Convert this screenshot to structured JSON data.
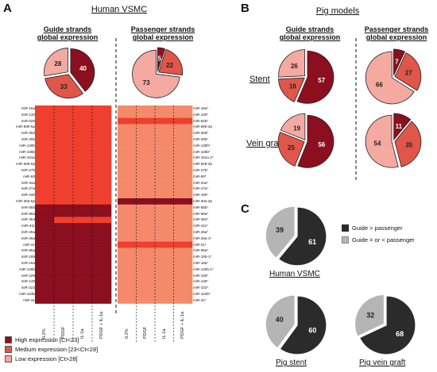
{
  "panels": {
    "a": "A",
    "b": "B",
    "c": "C"
  },
  "panel_a": {
    "title": "Human VSMC",
    "guide_header_1": "Guide strands",
    "guide_header_2": "global expression",
    "pass_header_1": "Passenger strands",
    "pass_header_2": "global expression",
    "left_rows": [
      "miR-16a",
      "miR-130",
      "miR-625",
      "miR-590-5p",
      "miR-30d",
      "miR-26b",
      "miR-130b",
      "miR-106b",
      "miR-181a",
      "miR-628-5p",
      "miR-27b",
      "miR-93",
      "miR-34a",
      "miR-27a",
      "miR-16b",
      "miR-30a-5p",
      "miR-55b",
      "miR-99a",
      "miR-454",
      "miR-411",
      "miR-25a",
      "miR-26a",
      "miR-21",
      "miR-95a",
      "miR-15b",
      "miR-16a",
      "miR-125b",
      "miR-100",
      "miR-145",
      "miR-222",
      "miR-153b",
      "miR-31"
    ],
    "right_rows": [
      "miR-16a*",
      "miR-130*",
      "miR-625*",
      "miR-590-3p",
      "miR-30d*",
      "miR-26b*",
      "miR-130b*",
      "miR-106b*",
      "miR-181a 2*",
      "miR-628-3p",
      "miR-27b*",
      "miR-93*",
      "miR-34a*",
      "miR-27a*",
      "miR-16b*",
      "miR-30a-3p",
      "miR-55b*",
      "miR-99a*",
      "miR-454*",
      "miR-411*",
      "miR-25a*",
      "miR-26a-1*",
      "miR-21*",
      "miR-95a*",
      "miR-15b-1*",
      "miR-16a*",
      "miR-125b-1*",
      "miR-100*",
      "miR-145*",
      "miR-222*",
      "miR-153b*",
      "miR-31*"
    ],
    "columns": [
      "0.2%",
      "PDGF",
      "IL-1a",
      "PDGF + IL-1a"
    ]
  },
  "panel_b": {
    "title": "Pig models",
    "guide_header_1": "Guide strands",
    "guide_header_2": "global expression",
    "pass_header_1": "Passenger strands",
    "pass_header_2": "global expression",
    "row_stent": "Stent",
    "row_vein": "Vein graft"
  },
  "panel_c": {
    "legend_guide_gt": "Guide > passenger",
    "legend_guide_le": "Guide = or < passenger",
    "label_human": "Human VSMC",
    "label_stent": "Pig stent",
    "label_vein": "Pig vein graft"
  },
  "legend_a": {
    "high": "High expression [Ct<23]",
    "medium": "Medium expression [23<Ct<28]",
    "low": "Low expression [Ct>28]"
  },
  "colors": {
    "high": "#8b0f1f",
    "medium": "#e0564a",
    "low": "#f4a9a1",
    "c_dark": "#2b2b2b",
    "c_light": "#b5b5b5"
  },
  "chart_data": [
    {
      "type": "pie",
      "id": "a-guide",
      "categories": [
        "High",
        "Medium",
        "Low"
      ],
      "values": [
        40,
        33,
        28
      ]
    },
    {
      "type": "pie",
      "id": "a-passenger",
      "categories": [
        "High",
        "Medium",
        "Low"
      ],
      "values": [
        5,
        22,
        73
      ]
    },
    {
      "type": "pie",
      "id": "b-stent-guide",
      "categories": [
        "High",
        "Medium",
        "Low"
      ],
      "values": [
        57,
        18,
        26
      ]
    },
    {
      "type": "pie",
      "id": "b-stent-passenger",
      "categories": [
        "High",
        "Medium",
        "Low"
      ],
      "values": [
        7,
        27,
        66
      ]
    },
    {
      "type": "pie",
      "id": "b-vein-guide",
      "categories": [
        "High",
        "Medium",
        "Low"
      ],
      "values": [
        56,
        25,
        19
      ]
    },
    {
      "type": "pie",
      "id": "b-vein-passenger",
      "categories": [
        "High",
        "Medium",
        "Low"
      ],
      "values": [
        11,
        35,
        54
      ]
    },
    {
      "type": "pie",
      "id": "c-human",
      "categories": [
        "Guide > passenger",
        "Guide = or < passenger"
      ],
      "values": [
        61,
        39
      ]
    },
    {
      "type": "pie",
      "id": "c-stent",
      "categories": [
        "Guide > passenger",
        "Guide = or < passenger"
      ],
      "values": [
        60,
        40
      ]
    },
    {
      "type": "pie",
      "id": "c-vein",
      "categories": [
        "Guide > passenger",
        "Guide = or < passenger"
      ],
      "values": [
        68,
        32
      ]
    },
    {
      "type": "heatmap",
      "id": "a-heatmap-guide",
      "columns": [
        "0.2%",
        "PDGF",
        "IL-1a",
        "PDGF + IL-1a"
      ],
      "levels": [
        [
          "M",
          "M",
          "M",
          "M"
        ],
        [
          "M",
          "M",
          "M",
          "M"
        ],
        [
          "M",
          "M",
          "M",
          "M"
        ],
        [
          "M",
          "M",
          "M",
          "M"
        ],
        [
          "M",
          "M",
          "M",
          "M"
        ],
        [
          "M",
          "M",
          "M",
          "M"
        ],
        [
          "M",
          "M",
          "M",
          "M"
        ],
        [
          "M",
          "M",
          "M",
          "M"
        ],
        [
          "M",
          "M",
          "M",
          "M"
        ],
        [
          "M",
          "M",
          "M",
          "M"
        ],
        [
          "M",
          "M",
          "M",
          "M"
        ],
        [
          "M",
          "M",
          "M",
          "M"
        ],
        [
          "M",
          "M",
          "M",
          "M"
        ],
        [
          "M",
          "M",
          "M",
          "M"
        ],
        [
          "M",
          "M",
          "M",
          "M"
        ],
        [
          "M",
          "M",
          "M",
          "M"
        ],
        [
          "H",
          "H",
          "H",
          "H"
        ],
        [
          "H",
          "H",
          "H",
          "H"
        ],
        [
          "H",
          "M",
          "M",
          "M"
        ],
        [
          "H",
          "H",
          "H",
          "H"
        ],
        [
          "H",
          "H",
          "H",
          "H"
        ],
        [
          "H",
          "H",
          "H",
          "H"
        ],
        [
          "H",
          "H",
          "H",
          "H"
        ],
        [
          "H",
          "H",
          "H",
          "H"
        ],
        [
          "H",
          "H",
          "H",
          "H"
        ],
        [
          "H",
          "H",
          "H",
          "H"
        ],
        [
          "H",
          "H",
          "H",
          "H"
        ],
        [
          "H",
          "H",
          "H",
          "H"
        ],
        [
          "H",
          "H",
          "H",
          "H"
        ],
        [
          "H",
          "H",
          "H",
          "H"
        ],
        [
          "H",
          "H",
          "H",
          "H"
        ],
        [
          "H",
          "H",
          "H",
          "H"
        ]
      ]
    },
    {
      "type": "heatmap",
      "id": "a-heatmap-passenger",
      "columns": [
        "0.2%",
        "PDGF",
        "IL-1a",
        "PDGF + IL-1a"
      ],
      "levels": [
        [
          "L",
          "L",
          "L",
          "L"
        ],
        [
          "L",
          "L",
          "L",
          "L"
        ],
        [
          "M",
          "M",
          "M",
          "M"
        ],
        [
          "L",
          "L",
          "L",
          "L"
        ],
        [
          "L",
          "L",
          "L",
          "L"
        ],
        [
          "L",
          "L",
          "L",
          "L"
        ],
        [
          "L",
          "L",
          "L",
          "L"
        ],
        [
          "L",
          "L",
          "L",
          "L"
        ],
        [
          "L",
          "L",
          "L",
          "L"
        ],
        [
          "L",
          "L",
          "L",
          "L"
        ],
        [
          "L",
          "L",
          "L",
          "L"
        ],
        [
          "L",
          "L",
          "L",
          "L"
        ],
        [
          "L",
          "L",
          "L",
          "L"
        ],
        [
          "L",
          "L",
          "L",
          "L"
        ],
        [
          "L",
          "L",
          "L",
          "L"
        ],
        [
          "H",
          "H",
          "H",
          "H"
        ],
        [
          "L",
          "L",
          "L",
          "L"
        ],
        [
          "L",
          "L",
          "L",
          "L"
        ],
        [
          "L",
          "L",
          "L",
          "L"
        ],
        [
          "L",
          "L",
          "L",
          "L"
        ],
        [
          "L",
          "L",
          "L",
          "L"
        ],
        [
          "L",
          "L",
          "L",
          "L"
        ],
        [
          "M",
          "M",
          "M",
          "M"
        ],
        [
          "L",
          "L",
          "L",
          "L"
        ],
        [
          "L",
          "L",
          "L",
          "L"
        ],
        [
          "L",
          "L",
          "L",
          "L"
        ],
        [
          "L",
          "L",
          "L",
          "L"
        ],
        [
          "L",
          "L",
          "L",
          "L"
        ],
        [
          "L",
          "L",
          "L",
          "L"
        ],
        [
          "L",
          "L",
          "L",
          "L"
        ],
        [
          "L",
          "L",
          "L",
          "L"
        ],
        [
          "L",
          "L",
          "L",
          "L"
        ]
      ]
    }
  ]
}
